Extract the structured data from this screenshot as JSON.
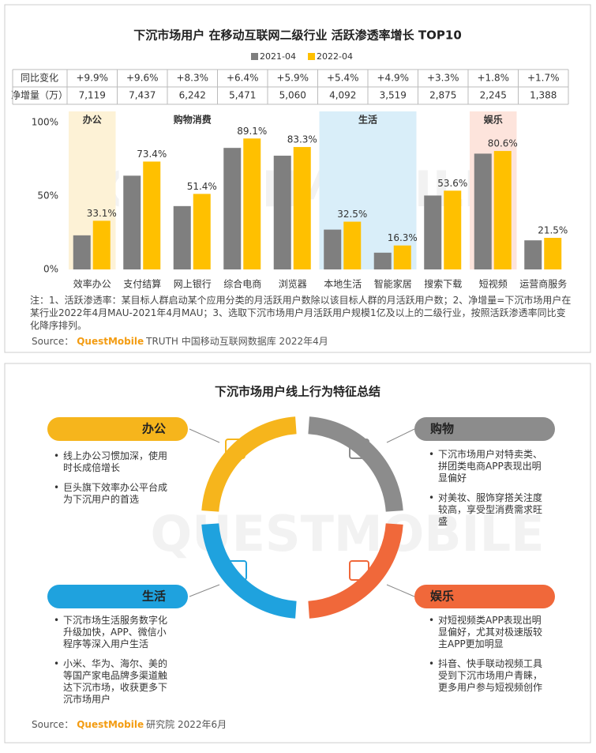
{
  "chart_data": {
    "type": "bar",
    "title": "下沉市场用户 在移动互联网二级行业 活跃渗透率增长 TOP10",
    "categories": [
      "效率办公",
      "支付结算",
      "网上银行",
      "综合电商",
      "浏览器",
      "本地生活",
      "智能家居",
      "搜索下载",
      "短视频",
      "运营商服务"
    ],
    "series": [
      {
        "name": "2021-04",
        "color": "#7f7f7f",
        "values": [
          23.2,
          63.8,
          43.1,
          82.7,
          77.4,
          27.1,
          11.4,
          50.3,
          78.8,
          19.8
        ]
      },
      {
        "name": "2022-04",
        "color": "#ffc000",
        "values": [
          33.1,
          73.4,
          51.4,
          89.1,
          83.3,
          32.5,
          16.3,
          53.6,
          80.6,
          21.5
        ],
        "value_labels": [
          "33.1%",
          "73.4%",
          "51.4%",
          "89.1%",
          "83.3%",
          "32.5%",
          "16.3%",
          "53.6%",
          "80.6%",
          "21.5%"
        ]
      }
    ],
    "ylim": [
      0,
      100
    ],
    "yticks": [
      {
        "value": 0,
        "label": "0%"
      },
      {
        "value": 50,
        "label": "50%"
      },
      {
        "value": 100,
        "label": "100%"
      }
    ],
    "groups": [
      {
        "label": "办公",
        "color": "#fdf2d6"
      },
      {
        "label": "购物消费",
        "color": "#ffffff"
      },
      {
        "label": "生活",
        "color": "#d9eef9"
      },
      {
        "label": "娱乐",
        "color": "#fde4dc"
      }
    ],
    "table": {
      "rows": [
        {
          "label": "同比变化",
          "cells": [
            "+9.9%",
            "+9.6%",
            "+8.3%",
            "+6.4%",
            "+5.9%",
            "+5.4%",
            "+4.9%",
            "+3.3%",
            "+1.8%",
            "+1.7%"
          ]
        },
        {
          "label": "净增量（万）",
          "cells": [
            "7,119",
            "7,437",
            "6,242",
            "5,471",
            "5,060",
            "4,092",
            "3,519",
            "2,875",
            "2,245",
            "1,388"
          ]
        }
      ]
    },
    "note": "注：1、活跃渗透率：某目标人群启动某个应用分类的月活跃用户数除以该目标人群的月活跃用户数；2、净增量=下沉市场用户在某行业2022年4月MAU-2021年4月MAU；3、选取下沉市场用户月活跃用户规模1亿及以上的二级行业，按照活跃渗透率同比变化降序排列。",
    "source": {
      "prefix": "Source：",
      "brand": "QuestMobile",
      "text": "TRUTH 中国移动互联网数据库 2022年4月"
    }
  },
  "watermark": "QUESTMOBILE",
  "diagram": {
    "title": "下沉市场用户线上行为特征总结",
    "quadrants": [
      {
        "label": "办公",
        "color": "#f6b51c",
        "bullets": [
          "线上办公习惯加深，使用时长成倍增长",
          "巨头旗下效率办公平台成为下沉用户的首选"
        ]
      },
      {
        "label": "购物",
        "color": "#8c8c8c",
        "bullets": [
          "下沉市场用户对特卖类、拼团类电商APP表现出明显偏好",
          "对美妆、服饰穿搭关注度较高，享受型消费需求旺盛"
        ]
      },
      {
        "label": "生活",
        "color": "#1fa2de",
        "bullets": [
          "下沉市场生活服务数字化升级加快，APP、微信小程序等深入用户生活",
          "小米、华为、海尔、美的等国产家电品牌多渠道触达下沉市场，收获更多下沉市场用户"
        ]
      },
      {
        "label": "娱乐",
        "color": "#f0683a",
        "bullets": [
          "对短视频类APP表现出明显偏好，尤其对极速版较主APP更加明显",
          "抖音、快手联动视频工具受到下沉市场用户青睐，更多用户参与短视频创作"
        ]
      }
    ],
    "source": {
      "prefix": "Source：",
      "brand": "QuestMobile",
      "text": "研究院 2022年6月"
    }
  }
}
